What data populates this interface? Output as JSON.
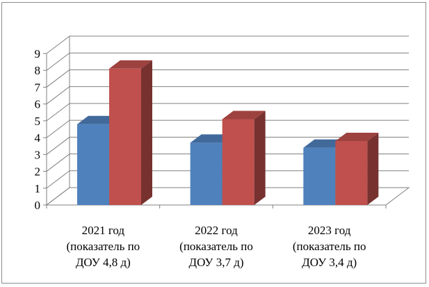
{
  "chart_data": {
    "type": "bar",
    "title": "",
    "xlabel": "",
    "ylabel": "",
    "categories": [
      [
        "2021 год",
        "(показатель по",
        "ДОУ 4,8 д)"
      ],
      [
        "2022 год",
        "(показатель по",
        "ДОУ 3,7 д)"
      ],
      [
        "2023 год",
        "(показатель по",
        "ДОУ 3,4 д)"
      ]
    ],
    "series": [
      {
        "values": [
          4.8,
          3.7,
          3.4
        ],
        "color": "#4f81bd"
      },
      {
        "values": [
          8.1,
          5.1,
          3.8
        ],
        "color": "#c0504d"
      }
    ],
    "ylim": [
      0,
      9
    ],
    "yticks": [
      "0",
      "1",
      "2",
      "3",
      "4",
      "5",
      "6",
      "7",
      "8",
      "9"
    ],
    "grid": true,
    "legend": "none",
    "style": "3d-clustered-column"
  }
}
